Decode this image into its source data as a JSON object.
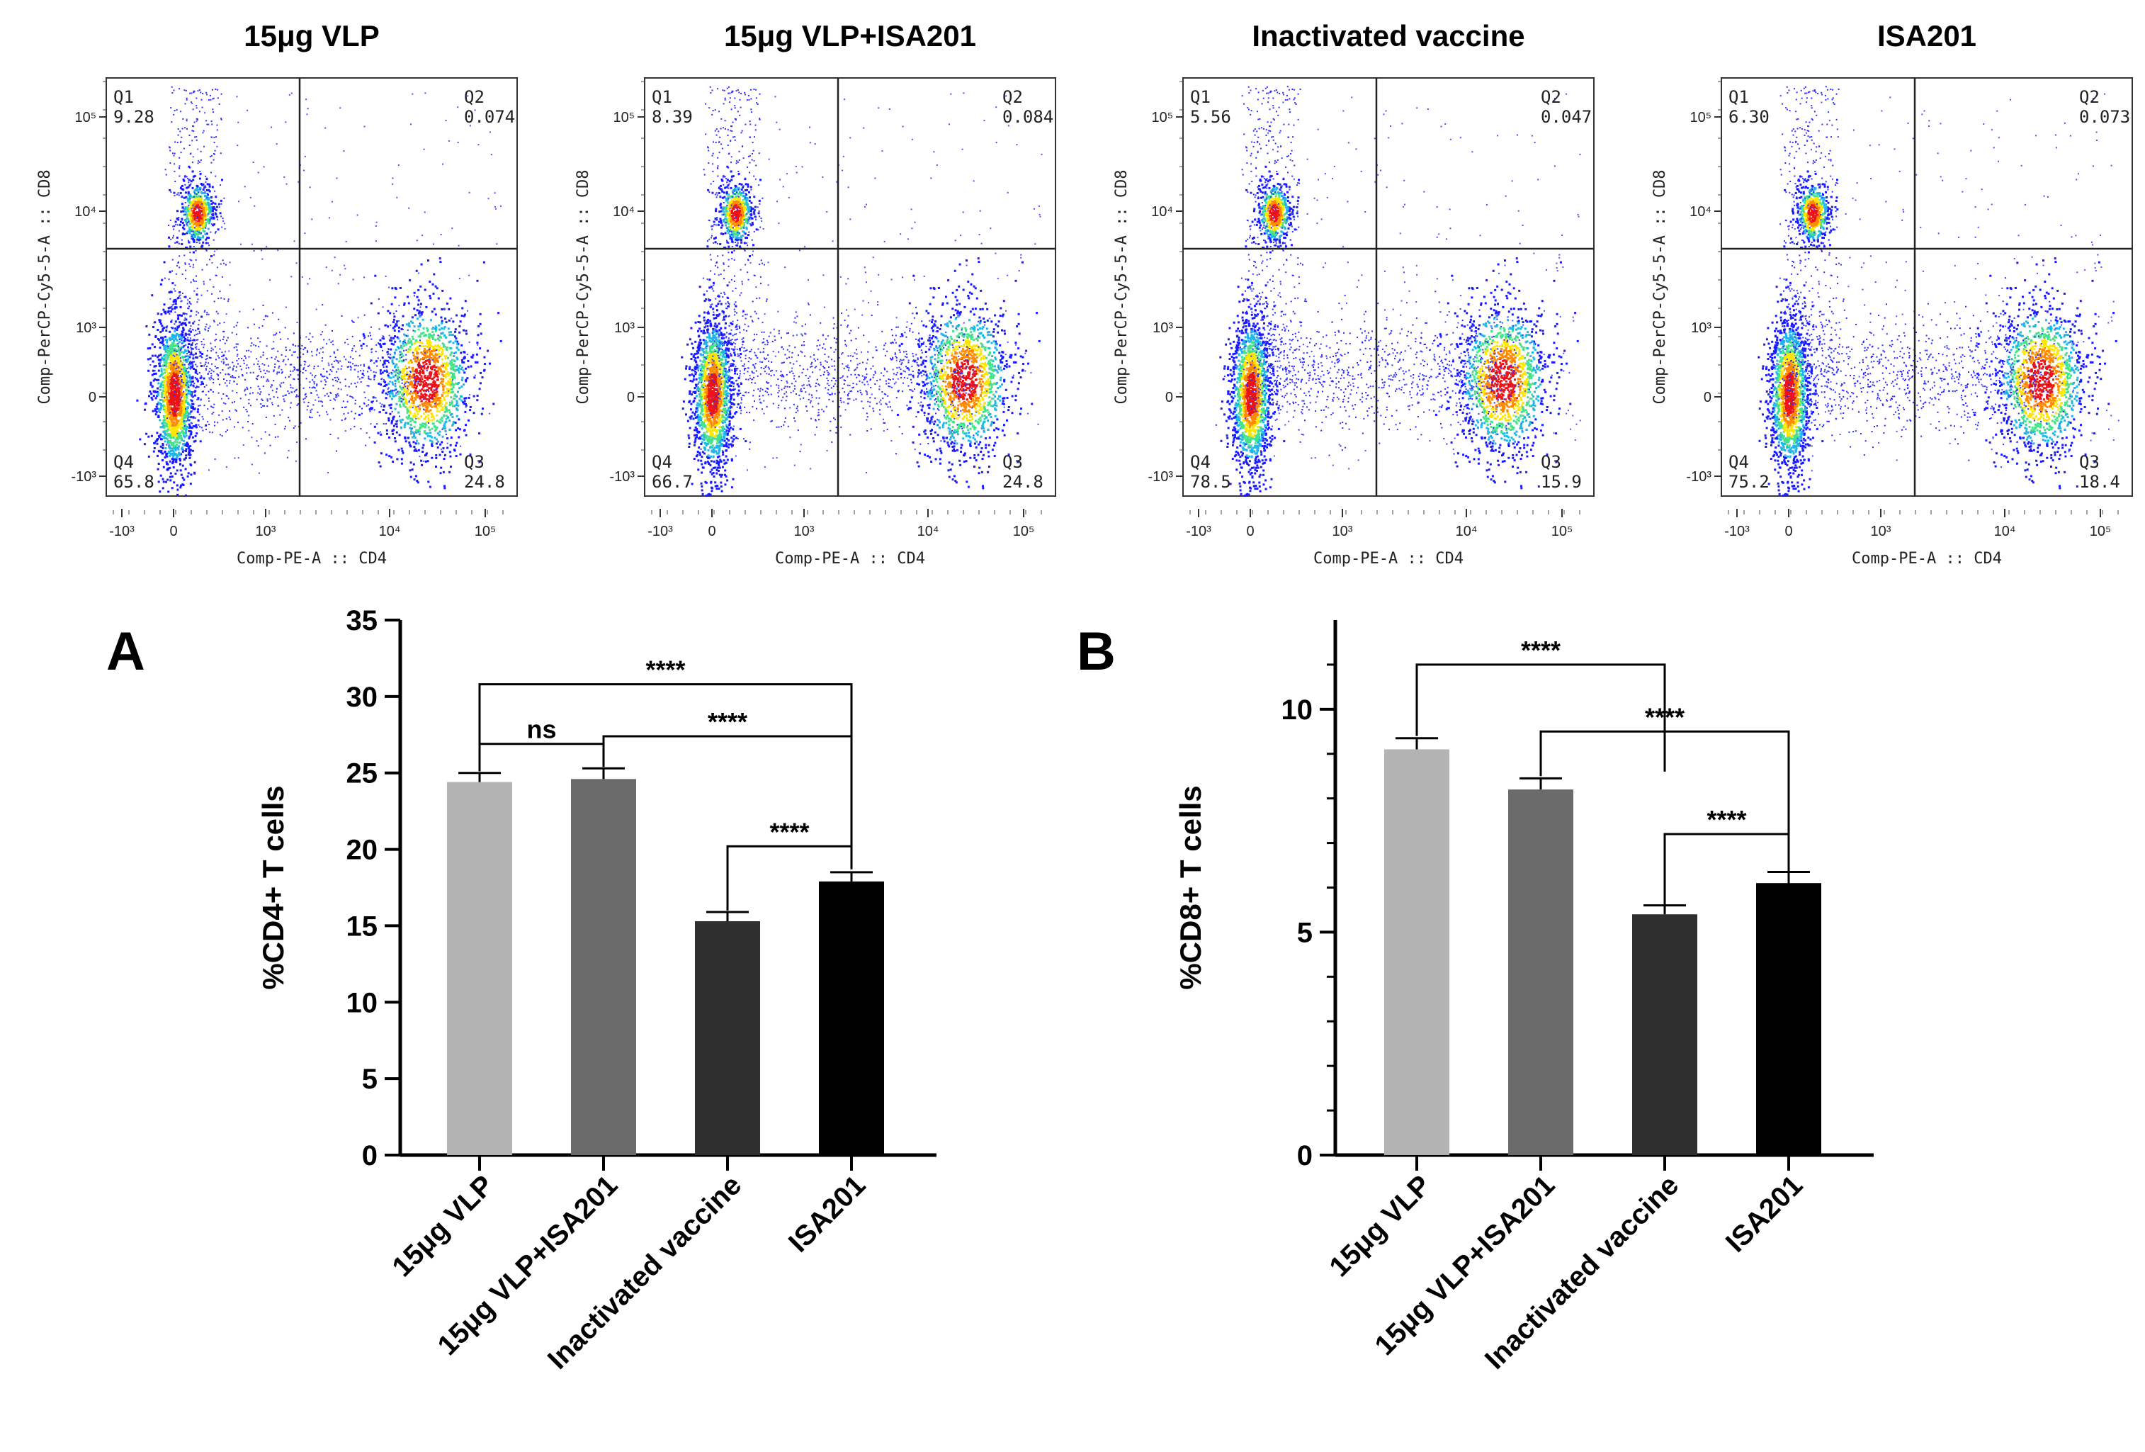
{
  "chart_data": [
    {
      "type": "scatter",
      "subtype": "flow-cytometry-quadrant",
      "title": "15μg VLP",
      "xlabel": "Comp-PE-A :: CD4",
      "ylabel": "Comp-PerCP-Cy5-5-A :: CD8",
      "quadrants": {
        "Q1": "9.28",
        "Q2": "0.074",
        "Q3": "24.8",
        "Q4": "65.8"
      }
    },
    {
      "type": "scatter",
      "subtype": "flow-cytometry-quadrant",
      "title": "15μg VLP+ISA201",
      "xlabel": "Comp-PE-A :: CD4",
      "ylabel": "Comp-PerCP-Cy5-5-A :: CD8",
      "quadrants": {
        "Q1": "8.39",
        "Q2": "0.084",
        "Q3": "24.8",
        "Q4": "66.7"
      }
    },
    {
      "type": "scatter",
      "subtype": "flow-cytometry-quadrant",
      "title": "Inactivated vaccine",
      "xlabel": "Comp-PE-A :: CD4",
      "ylabel": "Comp-PerCP-Cy5-5-A :: CD8",
      "quadrants": {
        "Q1": "5.56",
        "Q2": "0.047",
        "Q3": "15.9",
        "Q4": "78.5"
      }
    },
    {
      "type": "scatter",
      "subtype": "flow-cytometry-quadrant",
      "title": "ISA201",
      "xlabel": "Comp-PE-A :: CD4",
      "ylabel": "Comp-PerCP-Cy5-5-A :: CD8",
      "quadrants": {
        "Q1": "6.30",
        "Q2": "0.073",
        "Q3": "18.4",
        "Q4": "75.2"
      }
    },
    {
      "type": "bar",
      "panel_label": "A",
      "ylabel": "%CD4+ T cells",
      "categories": [
        "15μg VLP",
        "15μg VLP+ISA201",
        "Inactivated vaccine",
        "ISA201"
      ],
      "values": [
        24.4,
        24.6,
        15.3,
        17.9
      ],
      "errors": [
        0.6,
        0.7,
        0.6,
        0.6
      ],
      "colors": [
        "#b3b3b3",
        "#6b6b6b",
        "#2f2f2f",
        "#000000"
      ],
      "ylim": [
        0,
        35
      ],
      "yticks": [
        "0",
        "5",
        "10",
        "15",
        "20",
        "25",
        "30",
        "35"
      ],
      "significance": [
        {
          "from": 0,
          "to": 1,
          "label": "ns"
        },
        {
          "from": 0,
          "to": 3,
          "label": "****"
        },
        {
          "from": 1,
          "to": 3,
          "label": "****"
        },
        {
          "from": 2,
          "to": 3,
          "label": "****"
        }
      ]
    },
    {
      "type": "bar",
      "panel_label": "B",
      "ylabel": "%CD8+ T cells",
      "categories": [
        "15μg VLP",
        "15μg VLP+ISA201",
        "Inactivated vaccine",
        "ISA201"
      ],
      "values": [
        9.1,
        8.2,
        5.4,
        6.1
      ],
      "errors": [
        0.25,
        0.25,
        0.2,
        0.25
      ],
      "colors": [
        "#b3b3b3",
        "#6b6b6b",
        "#2f2f2f",
        "#000000"
      ],
      "ylim": [
        0,
        12
      ],
      "yticks": [
        "0",
        "5",
        "10"
      ],
      "significance": [
        {
          "from": 0,
          "to": 2,
          "label": "****"
        },
        {
          "from": 1,
          "to": 3,
          "label": "****"
        },
        {
          "from": 2,
          "to": 3,
          "label": "****"
        }
      ]
    }
  ]
}
